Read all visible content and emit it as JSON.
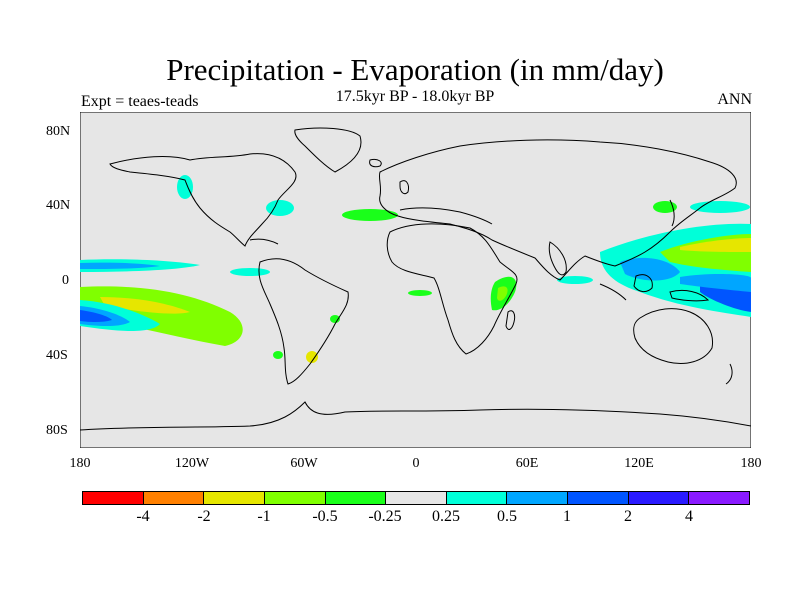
{
  "header": {
    "title": "Precipitation - Evaporation (in mm/day)",
    "subtitle": "17.5kyr BP - 18.0kyr BP",
    "left_label": "Expt = teaes-teads",
    "right_label": "ANN"
  },
  "map": {
    "projection": "cylindrical-equidistant",
    "lon_range": [
      -180,
      180
    ],
    "lat_range": [
      -90,
      90
    ],
    "background_color": "#e6e6e6",
    "coastline_color": "#000000",
    "y_ticks": [
      {
        "lat": 80,
        "label": "80N"
      },
      {
        "lat": 40,
        "label": "40N"
      },
      {
        "lat": 0,
        "label": "0"
      },
      {
        "lat": -40,
        "label": "40S"
      },
      {
        "lat": -80,
        "label": "80S"
      }
    ],
    "x_ticks": [
      {
        "lon": -180,
        "label": "180"
      },
      {
        "lon": -120,
        "label": "120W"
      },
      {
        "lon": -60,
        "label": "60W"
      },
      {
        "lon": 0,
        "label": "0"
      },
      {
        "lon": 60,
        "label": "60E"
      },
      {
        "lon": 120,
        "label": "120E"
      },
      {
        "lon": 180,
        "label": "180"
      }
    ]
  },
  "colorbar": {
    "colors": [
      "#ff0000",
      "#ff8000",
      "#e6e600",
      "#80ff00",
      "#1aff1a",
      "#e6e6e6",
      "#00ffd9",
      "#00a6ff",
      "#0055ff",
      "#2a1aff",
      "#8a1aff"
    ],
    "labels": [
      "-4",
      "-2",
      "-1",
      "-0.5",
      "-0.25",
      "0.25",
      "0.5",
      "1",
      "2",
      "4"
    ]
  }
}
